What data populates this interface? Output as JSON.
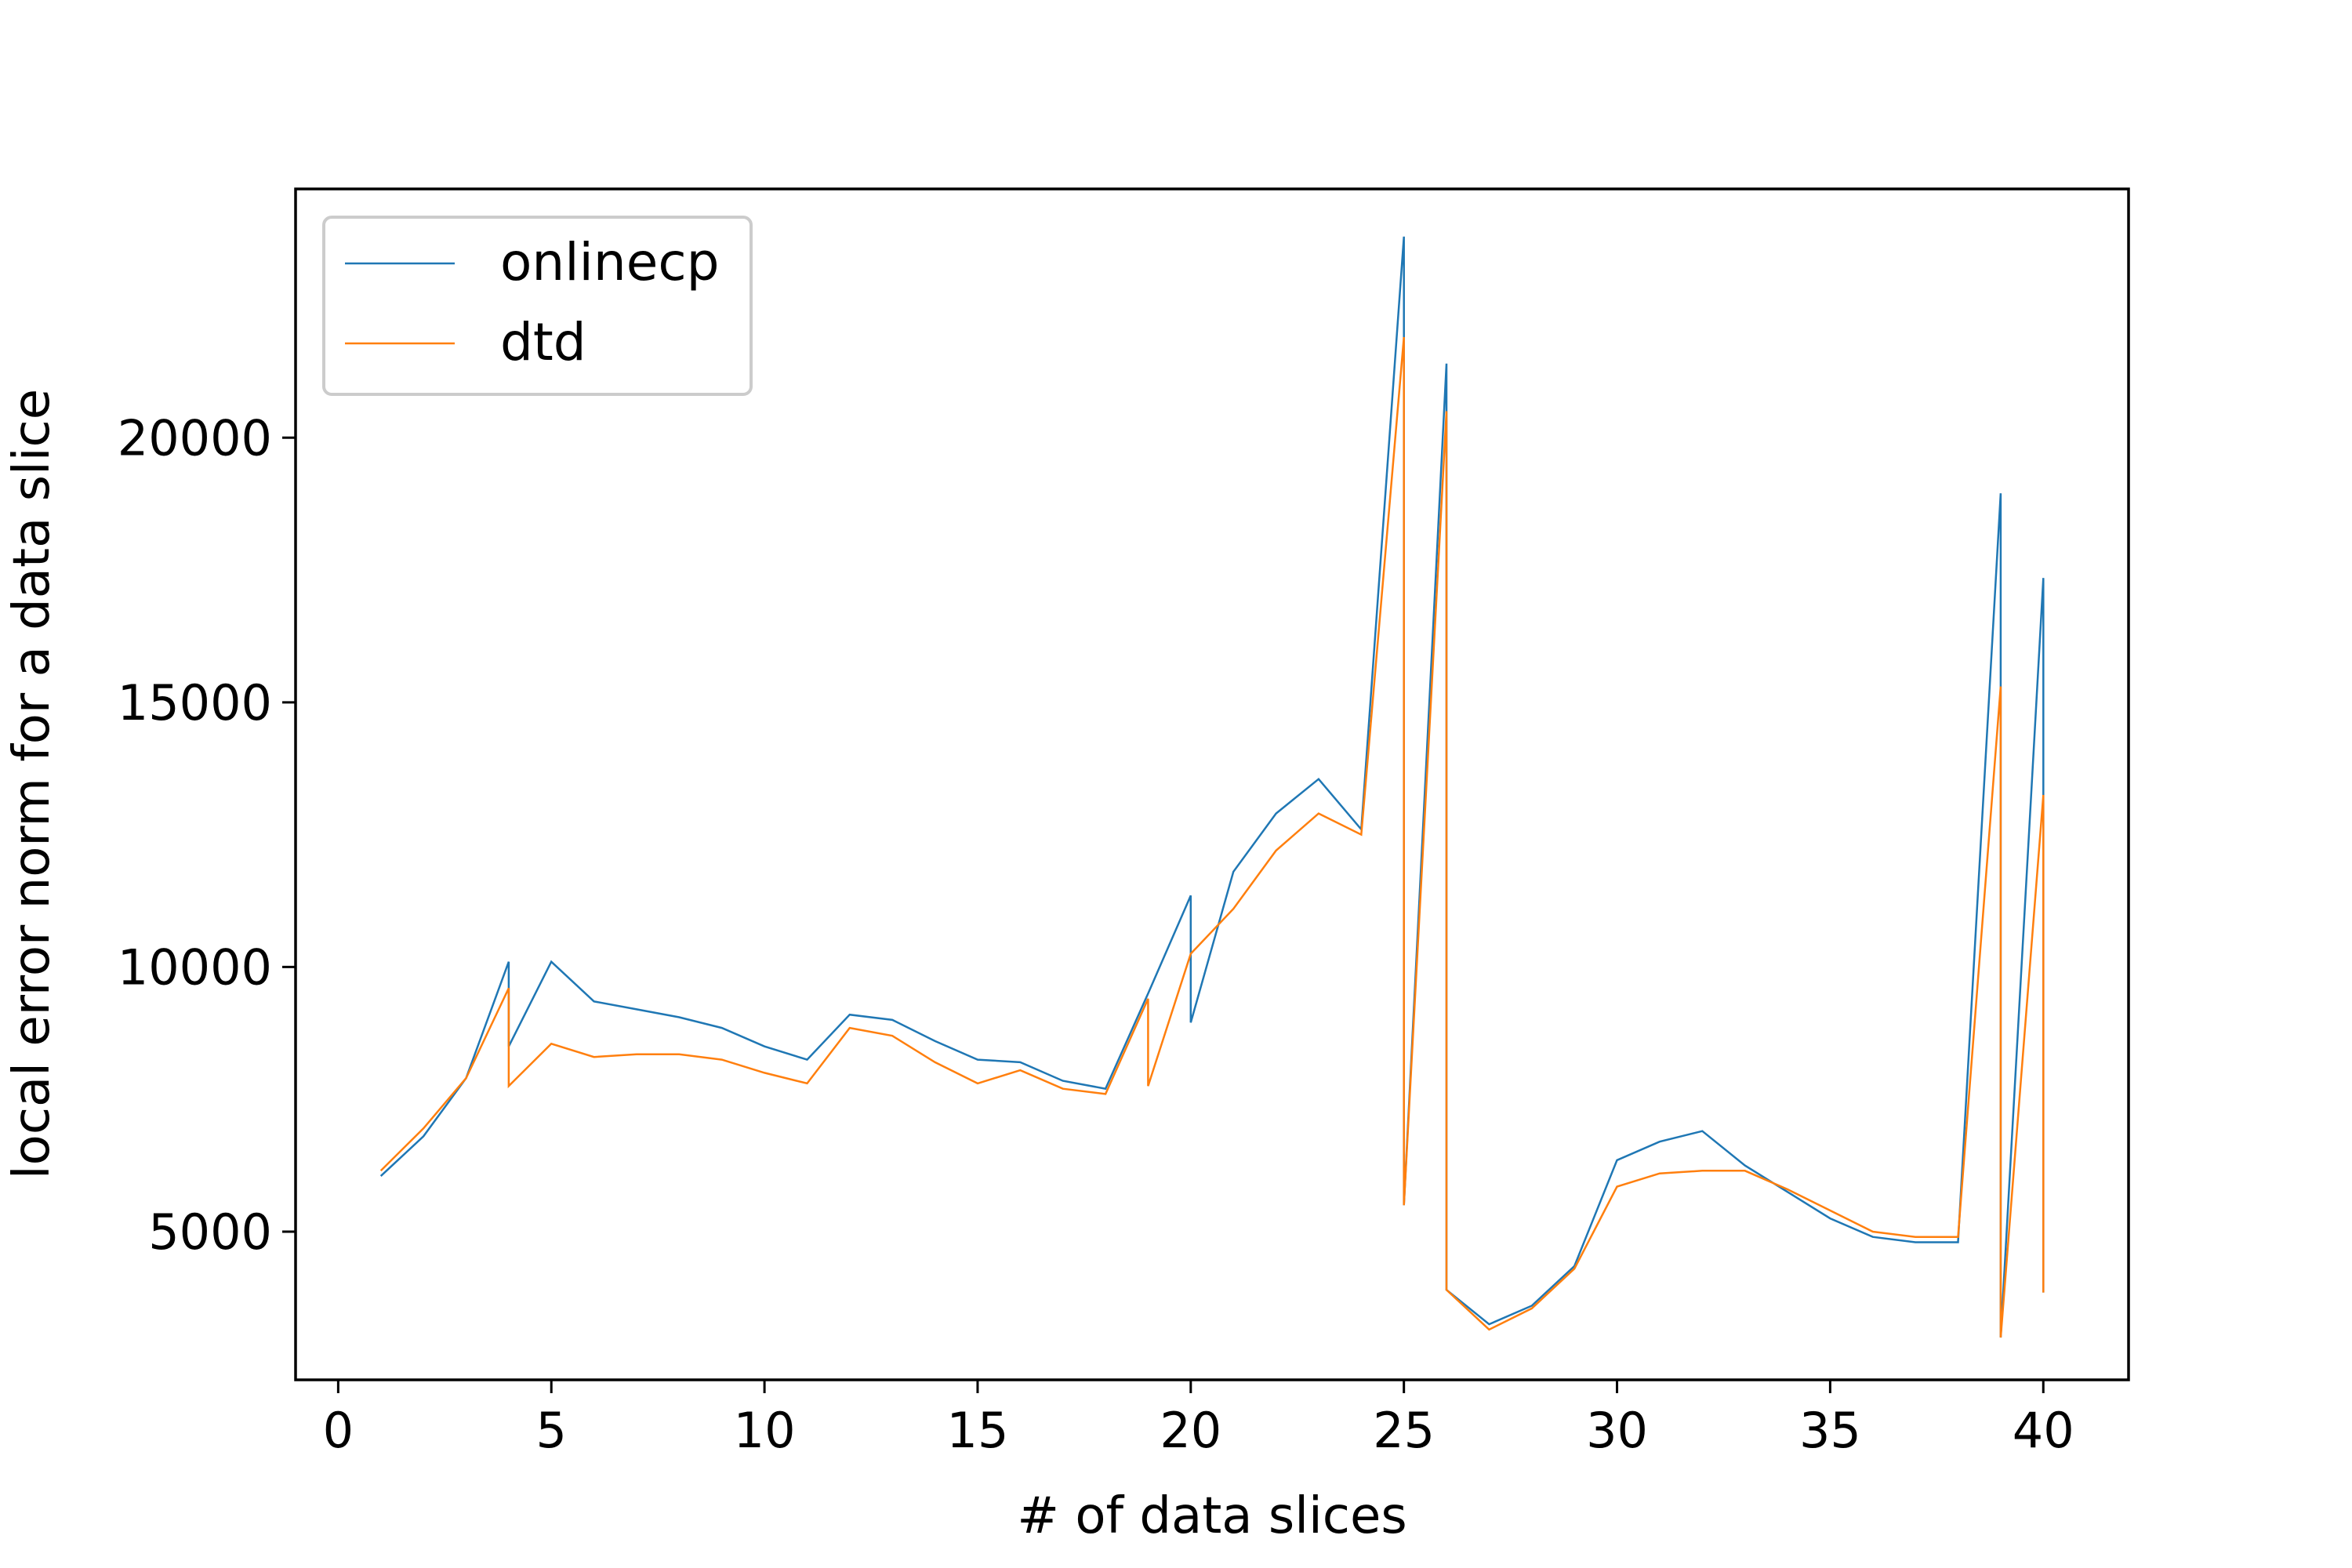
{
  "chart_data": {
    "type": "line",
    "xlabel": "# of data slices",
    "ylabel": "local error norm for a data slice",
    "xlim": [
      -1,
      42
    ],
    "ylim": [
      2200,
      24700
    ],
    "xticks": [
      0,
      5,
      10,
      15,
      20,
      25,
      30,
      35,
      40
    ],
    "yticks": [
      5000,
      10000,
      15000,
      20000
    ],
    "grid": false,
    "legend_position": "top-left",
    "series": [
      {
        "name": "onlinecp",
        "color": "#1f77b4",
        "points": [
          [
            1,
            6050
          ],
          [
            2,
            6800
          ],
          [
            3,
            7900
          ],
          [
            4,
            10100
          ],
          [
            4,
            8500
          ],
          [
            5,
            10100
          ],
          [
            6,
            9350
          ],
          [
            7,
            9200
          ],
          [
            8,
            9050
          ],
          [
            9,
            8850
          ],
          [
            10,
            8500
          ],
          [
            11,
            8250
          ],
          [
            12,
            9100
          ],
          [
            13,
            9000
          ],
          [
            14,
            8600
          ],
          [
            15,
            8250
          ],
          [
            16,
            8200
          ],
          [
            17,
            7850
          ],
          [
            18,
            7700
          ],
          [
            19,
            9500
          ],
          [
            20,
            11350
          ],
          [
            20,
            8950
          ],
          [
            21,
            11800
          ],
          [
            22,
            12900
          ],
          [
            23,
            13550
          ],
          [
            24,
            12600
          ],
          [
            25,
            23800
          ],
          [
            25,
            5500
          ],
          [
            26,
            21400
          ],
          [
            26,
            3900
          ],
          [
            27,
            3250
          ],
          [
            28,
            3600
          ],
          [
            29,
            4350
          ],
          [
            30,
            6350
          ],
          [
            31,
            6700
          ],
          [
            32,
            6900
          ],
          [
            33,
            6250
          ],
          [
            34,
            5750
          ],
          [
            35,
            5250
          ],
          [
            36,
            4900
          ],
          [
            37,
            4800
          ],
          [
            38,
            4800
          ],
          [
            39,
            18950
          ],
          [
            39,
            3000
          ],
          [
            40,
            17350
          ],
          [
            40,
            3850
          ]
        ]
      },
      {
        "name": "dtd",
        "color": "#ff7f0e",
        "points": [
          [
            1,
            6150
          ],
          [
            2,
            6950
          ],
          [
            3,
            7900
          ],
          [
            4,
            9600
          ],
          [
            4,
            7750
          ],
          [
            5,
            8550
          ],
          [
            6,
            8300
          ],
          [
            7,
            8350
          ],
          [
            8,
            8350
          ],
          [
            9,
            8250
          ],
          [
            10,
            8000
          ],
          [
            11,
            7800
          ],
          [
            12,
            8850
          ],
          [
            13,
            8700
          ],
          [
            14,
            8200
          ],
          [
            15,
            7800
          ],
          [
            16,
            8050
          ],
          [
            17,
            7700
          ],
          [
            18,
            7600
          ],
          [
            19,
            9400
          ],
          [
            19,
            7750
          ],
          [
            20,
            10250
          ],
          [
            21,
            11100
          ],
          [
            22,
            12200
          ],
          [
            23,
            12900
          ],
          [
            24,
            12500
          ],
          [
            25,
            21900
          ],
          [
            25,
            5500
          ],
          [
            26,
            20500
          ],
          [
            26,
            3900
          ],
          [
            27,
            3150
          ],
          [
            28,
            3550
          ],
          [
            29,
            4300
          ],
          [
            30,
            5850
          ],
          [
            31,
            6100
          ],
          [
            32,
            6150
          ],
          [
            33,
            6150
          ],
          [
            34,
            5800
          ],
          [
            35,
            5400
          ],
          [
            36,
            5000
          ],
          [
            37,
            4900
          ],
          [
            38,
            4900
          ],
          [
            39,
            15300
          ],
          [
            39,
            3000
          ],
          [
            40,
            13250
          ],
          [
            40,
            3850
          ]
        ]
      }
    ]
  }
}
